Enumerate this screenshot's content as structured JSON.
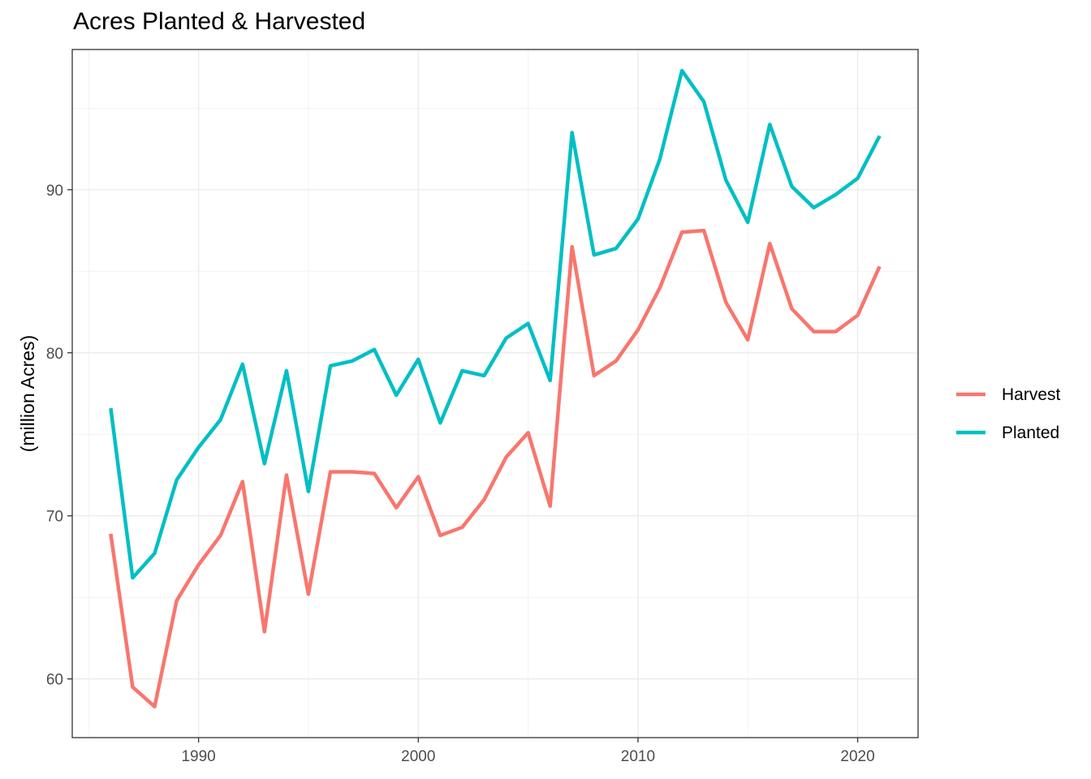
{
  "chart_data": {
    "type": "line",
    "title": "Acres Planted & Harvested",
    "xlabel": "",
    "ylabel": "(million Acres)",
    "x": [
      1986,
      1987,
      1988,
      1989,
      1990,
      1991,
      1992,
      1993,
      1994,
      1995,
      1996,
      1997,
      1998,
      1999,
      2000,
      2001,
      2002,
      2003,
      2004,
      2005,
      2006,
      2007,
      2008,
      2009,
      2010,
      2011,
      2012,
      2013,
      2014,
      2015,
      2016,
      2017,
      2018,
      2019,
      2020,
      2021
    ],
    "series": [
      {
        "name": "Harvest",
        "color": "#F8766D",
        "values": [
          68.9,
          59.5,
          58.3,
          64.8,
          67.0,
          68.8,
          72.1,
          62.9,
          72.5,
          65.2,
          72.7,
          72.7,
          72.6,
          70.5,
          72.4,
          68.8,
          69.3,
          71.0,
          73.6,
          75.1,
          70.6,
          86.5,
          78.6,
          79.5,
          81.4,
          84.0,
          87.4,
          87.5,
          83.1,
          80.8,
          86.7,
          82.7,
          81.3,
          81.3,
          82.3,
          85.3
        ]
      },
      {
        "name": "Planted",
        "color": "#00BFC4",
        "values": [
          76.6,
          66.2,
          67.7,
          72.2,
          74.2,
          75.9,
          79.3,
          73.2,
          78.9,
          71.5,
          79.2,
          79.5,
          80.2,
          77.4,
          79.6,
          75.7,
          78.9,
          78.6,
          80.9,
          81.8,
          78.3,
          93.5,
          86.0,
          86.4,
          88.2,
          91.9,
          97.3,
          95.4,
          90.6,
          88.0,
          94.0,
          90.2,
          88.9,
          89.7,
          90.7,
          93.3
        ]
      }
    ],
    "xlim": [
      1984.65,
      1982.35
    ],
    "xticks": [
      1990,
      2000,
      2010,
      2020
    ],
    "ylim": [
      56.4,
      98.6
    ],
    "yticks": [
      60,
      70,
      80,
      90
    ],
    "grid": true,
    "legend_position": "right"
  }
}
